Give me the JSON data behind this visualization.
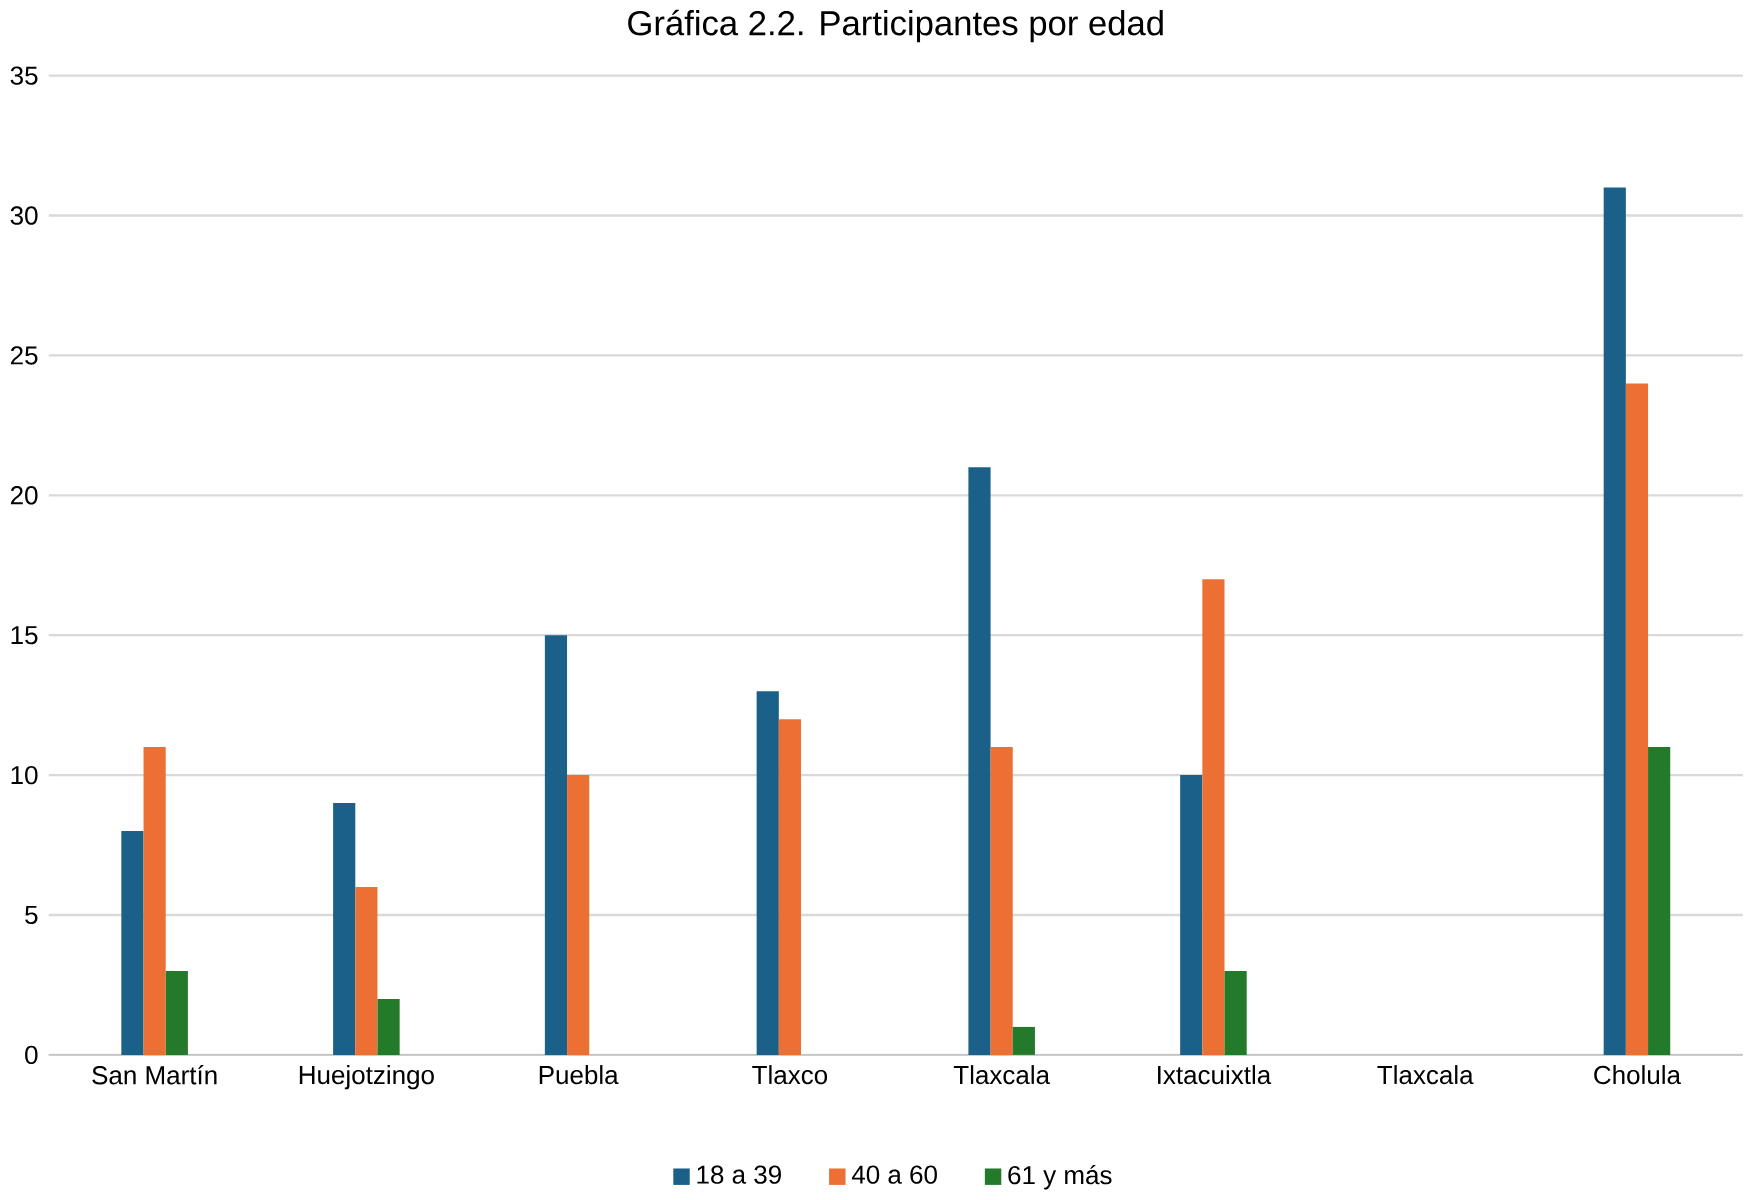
{
  "chart_data": {
    "type": "bar",
    "title": "Gráfica 2.2. Participantes por edad",
    "categories": [
      "San Martín",
      "Huejotzingo",
      "Puebla",
      "Tlaxco",
      "Tlaxcala",
      "Ixtacuixtla",
      "Tlaxcala",
      "Cholula"
    ],
    "series": [
      {
        "name": "18 a 39",
        "color": "#1a6088",
        "values": [
          8,
          9,
          15,
          13,
          21,
          10,
          0,
          31
        ]
      },
      {
        "name": "40 a 60",
        "color": "#ec7034",
        "values": [
          11,
          6,
          10,
          12,
          11,
          17,
          0,
          24
        ]
      },
      {
        "name": "61 y más",
        "color": "#237a2b",
        "values": [
          3,
          2,
          0,
          0,
          1,
          3,
          0,
          11
        ]
      }
    ],
    "ylim": [
      0,
      35
    ],
    "yticks": [
      0,
      5,
      10,
      15,
      20,
      25,
      30,
      35
    ],
    "grid": "y",
    "legend": "bottom"
  }
}
